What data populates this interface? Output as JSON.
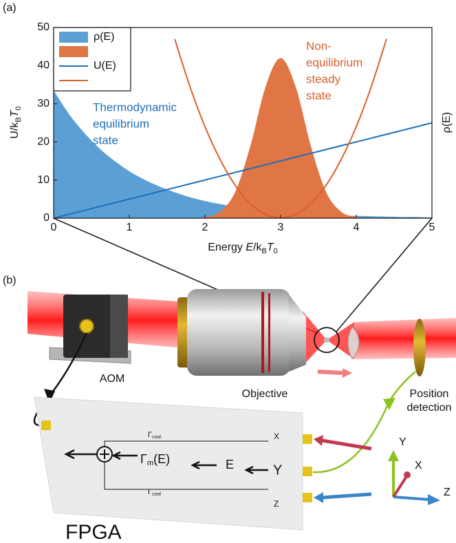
{
  "panels": {
    "a": "(a)",
    "b": "(b)"
  },
  "chart_data": {
    "type": "line",
    "ylabel": [
      "U/k",
      "B",
      "T",
      "0"
    ],
    "xlabel": [
      "Energy ",
      "E",
      "/k",
      "B",
      "T",
      "0"
    ],
    "y2label": "ρ(E)",
    "xlim": [
      0,
      5
    ],
    "xticks": [
      0,
      1,
      2,
      3,
      4,
      5
    ],
    "ylim": [
      0,
      50
    ],
    "yticks": [
      0,
      10,
      20,
      30,
      40,
      50
    ],
    "grid": false,
    "legend": "upper left",
    "annotations": [
      {
        "lines": [
          "Thermodynamic",
          "equilibrium",
          "state"
        ],
        "color": "#1f6fb5"
      },
      {
        "lines": [
          "Non-",
          "equilibrium",
          "steady",
          "state"
        ],
        "color": "#d8602a"
      }
    ],
    "x": [
      0,
      0.2,
      0.4,
      0.6,
      0.8,
      1,
      1.2,
      1.4,
      1.6,
      1.8,
      2,
      2.2,
      2.4,
      2.6,
      2.8,
      3,
      3.2,
      3.4,
      3.6,
      3.8,
      4,
      4.2,
      4.4,
      4.6,
      4.8,
      5
    ],
    "series": [
      {
        "name": "ρ(E)",
        "kind": "area",
        "color": "#5b9fd5",
        "values": [
          33.5,
          27.4,
          22.5,
          18.4,
          15.1,
          12.3,
          10.1,
          8.3,
          6.8,
          5.5,
          4.5,
          3.7,
          3.0,
          2.5,
          2.0,
          1.7,
          1.4,
          1.1,
          0.9,
          0.7,
          0.6,
          0.5,
          0.4,
          0.3,
          0.3,
          0.2
        ]
      },
      {
        "name": null,
        "kind": "area",
        "color": "#e07545",
        "values": [
          0,
          0,
          0,
          0,
          0,
          0,
          0,
          0,
          0,
          0,
          0.3,
          1.7,
          6.9,
          18.9,
          34.4,
          42,
          34.4,
          18.9,
          6.9,
          1.7,
          0.3,
          0,
          0,
          0,
          0,
          0
        ]
      },
      {
        "name": "U(E)",
        "kind": "line",
        "color": "#1f6fb5",
        "values": [
          0,
          1,
          2,
          3,
          4,
          5,
          6,
          7,
          8,
          9,
          10,
          11,
          12,
          13,
          14,
          15,
          16,
          17,
          18,
          19,
          20,
          21,
          22,
          23,
          24,
          25
        ]
      },
      {
        "name": null,
        "kind": "line",
        "color": "#d8602a",
        "values": [
          null,
          null,
          null,
          null,
          null,
          null,
          null,
          null,
          47.0,
          34.6,
          24,
          15.4,
          8.6,
          3.8,
          1.0,
          0,
          1.0,
          3.8,
          8.6,
          15.4,
          24,
          34.6,
          47.0,
          null,
          null,
          null
        ]
      }
    ]
  },
  "diagram": {
    "aom": "AOM",
    "objective": "Objective",
    "position": [
      "Position",
      "detection"
    ],
    "fpga": "FPGA",
    "gamma_cool_top": [
      "Γ",
      "cool"
    ],
    "gamma_cool_bottom": [
      "Γ",
      "cool"
    ],
    "gamma_m": [
      "Γ",
      "m",
      "(E)"
    ],
    "in_x": "X",
    "in_e": "E",
    "in_y": "Y",
    "in_z": "Z",
    "axes": {
      "y": "Y",
      "x": "X",
      "z": "Z"
    }
  }
}
